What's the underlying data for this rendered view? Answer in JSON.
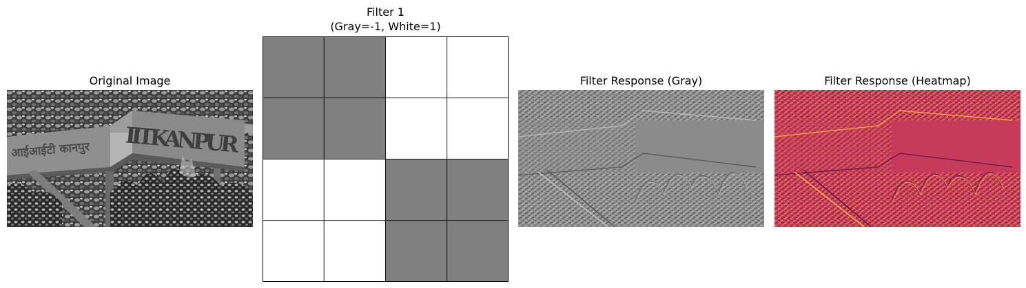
{
  "panels": {
    "original": {
      "title": "Original Image"
    },
    "filter": {
      "title_line1": "Filter 1",
      "title_line2": "(Gray=-1, White=1)",
      "matrix": [
        [
          -1,
          -1,
          1,
          1
        ],
        [
          -1,
          -1,
          1,
          1
        ],
        [
          1,
          1,
          -1,
          -1
        ],
        [
          1,
          1,
          -1,
          -1
        ]
      ],
      "colors": {
        "negative": "#808080",
        "positive": "#ffffff",
        "grid": "#000000"
      }
    },
    "response_gray": {
      "title": "Filter Response (Gray)"
    },
    "response_heatmap": {
      "title": "Filter Response (Heatmap)"
    }
  },
  "sign_text": {
    "hindi": "आईआईटी कानपुर",
    "english": "IITKANPUR"
  },
  "colors": {
    "heatmap_base": "#c73a5a",
    "heatmap_hot": "#f4a24a",
    "heatmap_dark": "#6b1a4a",
    "gray_base": "#8a8a8a"
  }
}
